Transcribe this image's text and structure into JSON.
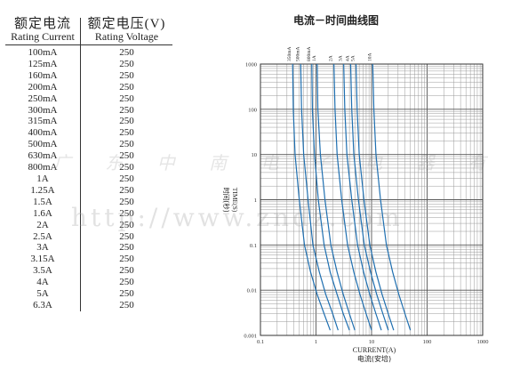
{
  "table": {
    "header_current_zh": "额定电流",
    "header_current_en": "Rating Current",
    "header_voltage_zh": "额定电压(V)",
    "header_voltage_en": "Rating Voltage",
    "rows": [
      {
        "current": "100mA",
        "voltage": "250"
      },
      {
        "current": "125mA",
        "voltage": "250"
      },
      {
        "current": "160mA",
        "voltage": "250"
      },
      {
        "current": "200mA",
        "voltage": "250"
      },
      {
        "current": "250mA",
        "voltage": "250"
      },
      {
        "current": "300mA",
        "voltage": "250"
      },
      {
        "current": "315mA",
        "voltage": "250"
      },
      {
        "current": "400mA",
        "voltage": "250"
      },
      {
        "current": "500mA",
        "voltage": "250"
      },
      {
        "current": "630mA",
        "voltage": "250"
      },
      {
        "current": "800mA",
        "voltage": "250"
      },
      {
        "current": "1A",
        "voltage": "250"
      },
      {
        "current": "1.25A",
        "voltage": "250"
      },
      {
        "current": "1.5A",
        "voltage": "250"
      },
      {
        "current": "1.6A",
        "voltage": "250"
      },
      {
        "current": "2A",
        "voltage": "250"
      },
      {
        "current": "2.5A",
        "voltage": "250"
      },
      {
        "current": "3A",
        "voltage": "250"
      },
      {
        "current": "3.15A",
        "voltage": "250"
      },
      {
        "current": "3.5A",
        "voltage": "250"
      },
      {
        "current": "4A",
        "voltage": "250"
      },
      {
        "current": "5A",
        "voltage": "250"
      },
      {
        "current": "6.3A",
        "voltage": "250"
      }
    ]
  },
  "watermark": {
    "company": "广 东 中 南 电 子 电 器 有 限 公 司",
    "url": "http://www.zndz.com"
  },
  "chart_data": {
    "type": "line",
    "title": "电流－时间曲线图",
    "xlabel": "CURRENT(A)",
    "xlabel_zh": "电流(安培)",
    "ylabel": "TIME(S)",
    "ylabel_zh": "时间(秒)",
    "x_scale": "log",
    "y_scale": "log",
    "xlim": [
      0.1,
      1000
    ],
    "ylim": [
      0.001,
      1000
    ],
    "x_ticks": [
      "0.1",
      "1",
      "10",
      "100",
      "1000"
    ],
    "y_ticks": [
      "1000",
      "100",
      "10",
      "1",
      "0.1",
      "0.01",
      "0.001"
    ],
    "grid": true,
    "curve_color": "#1f6fb0",
    "series": [
      {
        "name": "350mA",
        "x": [
          0.38,
          0.39,
          0.42,
          0.5,
          0.62,
          0.8,
          1.05,
          1.4,
          1.8
        ],
        "y": [
          1000,
          100,
          10,
          1,
          0.1,
          0.025,
          0.008,
          0.003,
          0.0013
        ]
      },
      {
        "name": "500mA",
        "x": [
          0.53,
          0.55,
          0.6,
          0.72,
          0.88,
          1.15,
          1.5,
          2.0,
          2.5
        ],
        "y": [
          1000,
          100,
          10,
          1,
          0.1,
          0.025,
          0.008,
          0.003,
          0.0013
        ]
      },
      {
        "name": "800mA",
        "x": [
          0.84,
          0.86,
          0.94,
          1.1,
          1.4,
          1.8,
          2.4,
          3.1,
          4.0
        ],
        "y": [
          1000,
          100,
          10,
          1,
          0.1,
          0.025,
          0.008,
          0.003,
          0.0013
        ]
      },
      {
        "name": "1A",
        "x": [
          1.05,
          1.08,
          1.2,
          1.45,
          1.85,
          2.4,
          3.1,
          4.0,
          5.0
        ],
        "y": [
          1000,
          100,
          10,
          1,
          0.1,
          0.025,
          0.008,
          0.003,
          0.0013
        ]
      },
      {
        "name": "2A",
        "x": [
          2.1,
          2.2,
          2.4,
          2.9,
          3.7,
          4.8,
          6.2,
          8.0,
          10.0
        ],
        "y": [
          1000,
          100,
          10,
          1,
          0.1,
          0.025,
          0.008,
          0.003,
          0.0013
        ]
      },
      {
        "name": "3A",
        "x": [
          3.15,
          3.3,
          3.6,
          4.4,
          5.6,
          7.2,
          9.3,
          12.0,
          15.0
        ],
        "y": [
          1000,
          100,
          10,
          1,
          0.1,
          0.025,
          0.008,
          0.003,
          0.0013
        ]
      },
      {
        "name": "4A",
        "x": [
          4.2,
          4.4,
          4.8,
          5.8,
          7.4,
          9.6,
          12.4,
          16.0,
          20.0
        ],
        "y": [
          1000,
          100,
          10,
          1,
          0.1,
          0.025,
          0.008,
          0.003,
          0.0013
        ]
      },
      {
        "name": "5A",
        "x": [
          5.25,
          5.5,
          6.0,
          7.3,
          9.3,
          12.0,
          15.5,
          20.0,
          25.0
        ],
        "y": [
          1000,
          100,
          10,
          1,
          0.1,
          0.025,
          0.008,
          0.003,
          0.0013
        ]
      },
      {
        "name": "10A",
        "x": [
          10.5,
          11.0,
          12.0,
          14.5,
          18.5,
          24.0,
          31.0,
          40.0,
          50.0
        ],
        "y": [
          1000,
          100,
          10,
          1,
          0.1,
          0.025,
          0.008,
          0.003,
          0.0013
        ]
      }
    ]
  }
}
